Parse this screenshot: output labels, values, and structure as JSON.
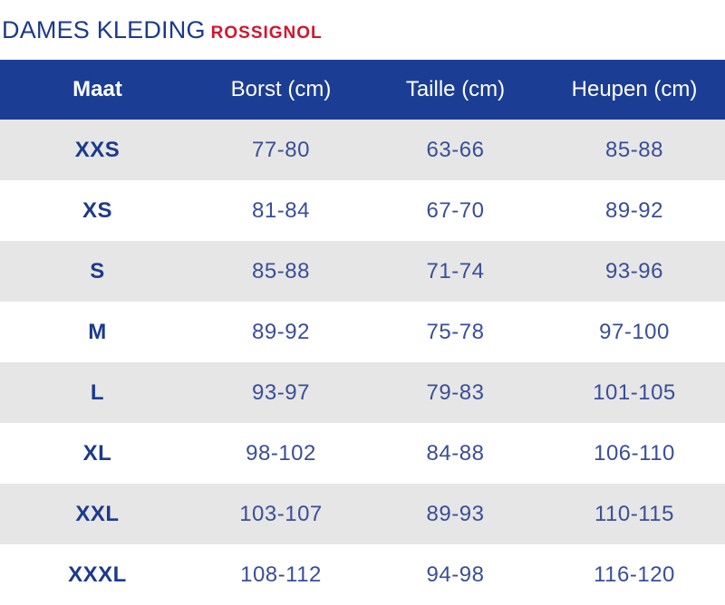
{
  "header": {
    "title": "DAMES KLEDING",
    "brand": "ROSSIGNOL"
  },
  "table": {
    "columns": [
      "Maat",
      "Borst (cm)",
      "Taille (cm)",
      "Heupen (cm)"
    ],
    "rows": [
      {
        "size": "XXS",
        "chest": "77-80",
        "waist": "63-66",
        "hips": "85-88"
      },
      {
        "size": "XS",
        "chest": "81-84",
        "waist": "67-70",
        "hips": "89-92"
      },
      {
        "size": "S",
        "chest": "85-88",
        "waist": "71-74",
        "hips": "93-96"
      },
      {
        "size": "M",
        "chest": "89-92",
        "waist": "75-78",
        "hips": "97-100"
      },
      {
        "size": "L",
        "chest": "93-97",
        "waist": "79-83",
        "hips": "101-105"
      },
      {
        "size": "XL",
        "chest": "98-102",
        "waist": "84-88",
        "hips": "106-110"
      },
      {
        "size": "XXL",
        "chest": "103-107",
        "waist": "89-93",
        "hips": "110-115"
      },
      {
        "size": "XXXL",
        "chest": "108-112",
        "waist": "94-98",
        "hips": "116-120"
      }
    ]
  },
  "colors": {
    "header_blue": "#1b3d93",
    "text_blue": "#1b3a8c",
    "brand_red": "#d4142c",
    "row_gray": "#e6e6e6"
  }
}
